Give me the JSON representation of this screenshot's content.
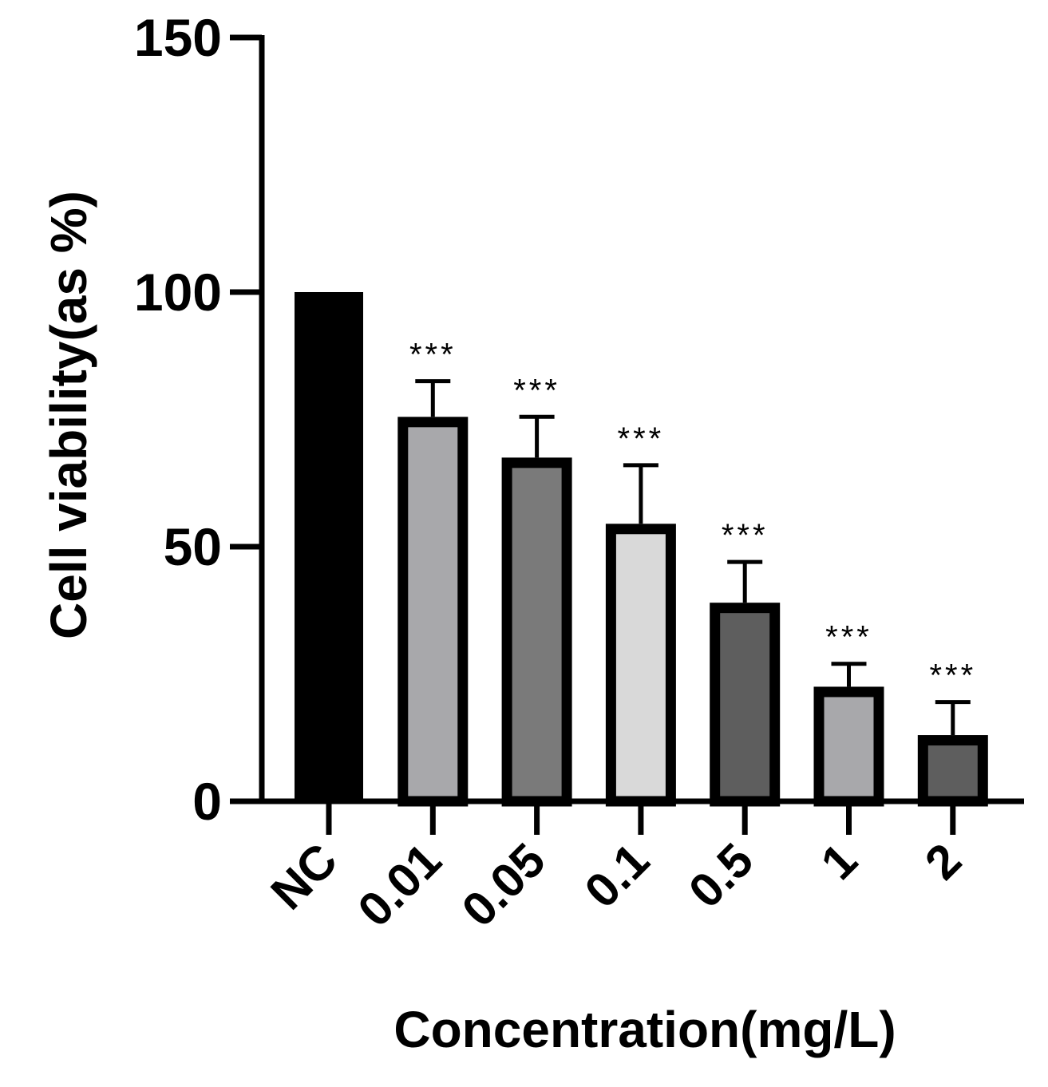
{
  "chart_data": {
    "type": "bar",
    "title": "",
    "xlabel": "Concentration(mg/L)",
    "ylabel": "Cell viability(as %)",
    "ylim": [
      0,
      150
    ],
    "yticks": [
      0,
      50,
      100,
      150
    ],
    "categories": [
      "NC",
      "0.01",
      "0.05",
      "0.1",
      "0.5",
      "1",
      "2"
    ],
    "values": [
      100,
      75.5,
      67.5,
      54.5,
      39,
      22.5,
      13
    ],
    "error_upper": [
      0,
      7,
      8,
      11.5,
      8,
      4.5,
      6.5
    ],
    "significance": [
      "",
      "***",
      "***",
      "***",
      "***",
      "***",
      "***"
    ],
    "bar_fill": [
      "#000000",
      "#a8a8ab",
      "#7a7a7a",
      "#d9d9d9",
      "#5e5e5e",
      "#a8a8ab",
      "#5e5e5e"
    ],
    "bar_edge": "#000000",
    "grid": false,
    "legend": "none"
  }
}
